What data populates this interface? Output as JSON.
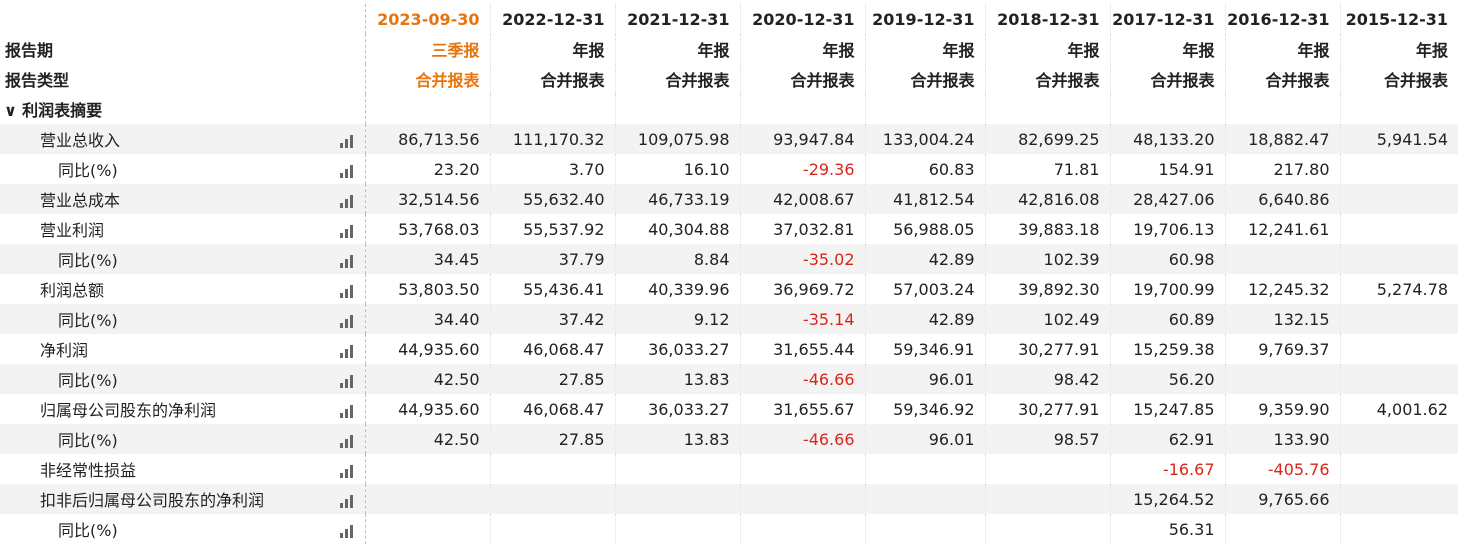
{
  "header": {
    "period_label": "报告期",
    "type_label": "报告类型"
  },
  "columns": [
    {
      "date": "2023-09-30",
      "period_type": "三季报",
      "report_type": "合并报表"
    },
    {
      "date": "2022-12-31",
      "period_type": "年报",
      "report_type": "合并报表"
    },
    {
      "date": "2021-12-31",
      "period_type": "年报",
      "report_type": "合并报表"
    },
    {
      "date": "2020-12-31",
      "period_type": "年报",
      "report_type": "合并报表"
    },
    {
      "date": "2019-12-31",
      "period_type": "年报",
      "report_type": "合并报表"
    },
    {
      "date": "2018-12-31",
      "period_type": "年报",
      "report_type": "合并报表"
    },
    {
      "date": "2017-12-31",
      "period_type": "年报",
      "report_type": "合并报表"
    },
    {
      "date": "2016-12-31",
      "period_type": "年报",
      "report_type": "合并报表"
    },
    {
      "date": "2015-12-31",
      "period_type": "年报",
      "report_type": "合并报表"
    }
  ],
  "section": {
    "title": "利润表摘要"
  },
  "rows": [
    {
      "label": "营业总收入",
      "values": [
        "86,713.56",
        "111,170.32",
        "109,075.98",
        "93,947.84",
        "133,004.24",
        "82,699.25",
        "48,133.20",
        "18,882.47",
        "5,941.54"
      ],
      "yoy": {
        "label": "同比(%)",
        "values": [
          "23.20",
          "3.70",
          "16.10",
          "-29.36",
          "60.83",
          "71.81",
          "154.91",
          "217.80",
          null
        ]
      }
    },
    {
      "label": "营业总成本",
      "values": [
        "32,514.56",
        "55,632.40",
        "46,733.19",
        "42,008.67",
        "41,812.54",
        "42,816.08",
        "28,427.06",
        "6,640.86",
        null
      ]
    },
    {
      "label": "营业利润",
      "values": [
        "53,768.03",
        "55,537.92",
        "40,304.88",
        "37,032.81",
        "56,988.05",
        "39,883.18",
        "19,706.13",
        "12,241.61",
        null
      ],
      "yoy": {
        "label": "同比(%)",
        "values": [
          "34.45",
          "37.79",
          "8.84",
          "-35.02",
          "42.89",
          "102.39",
          "60.98",
          null,
          null
        ]
      }
    },
    {
      "label": "利润总额",
      "values": [
        "53,803.50",
        "55,436.41",
        "40,339.96",
        "36,969.72",
        "57,003.24",
        "39,892.30",
        "19,700.99",
        "12,245.32",
        "5,274.78"
      ],
      "yoy": {
        "label": "同比(%)",
        "values": [
          "34.40",
          "37.42",
          "9.12",
          "-35.14",
          "42.89",
          "102.49",
          "60.89",
          "132.15",
          null
        ]
      }
    },
    {
      "label": "净利润",
      "values": [
        "44,935.60",
        "46,068.47",
        "36,033.27",
        "31,655.44",
        "59,346.91",
        "30,277.91",
        "15,259.38",
        "9,769.37",
        null
      ],
      "yoy": {
        "label": "同比(%)",
        "values": [
          "42.50",
          "27.85",
          "13.83",
          "-46.66",
          "96.01",
          "98.42",
          "56.20",
          null,
          null
        ]
      }
    },
    {
      "label": "归属母公司股东的净利润",
      "values": [
        "44,935.60",
        "46,068.47",
        "36,033.27",
        "31,655.67",
        "59,346.92",
        "30,277.91",
        "15,247.85",
        "9,359.90",
        "4,001.62"
      ],
      "yoy": {
        "label": "同比(%)",
        "values": [
          "42.50",
          "27.85",
          "13.83",
          "-46.66",
          "96.01",
          "98.57",
          "62.91",
          "133.90",
          null
        ]
      }
    },
    {
      "label": "非经常性损益",
      "values": [
        null,
        null,
        null,
        null,
        null,
        null,
        "-16.67",
        "-405.76",
        null
      ]
    },
    {
      "label": "扣非后归属母公司股东的净利润",
      "values": [
        null,
        null,
        null,
        null,
        null,
        null,
        "15,264.52",
        "9,765.66",
        null
      ],
      "yoy": {
        "label": "同比(%)",
        "values": [
          null,
          null,
          null,
          null,
          null,
          null,
          "56.31",
          null,
          null
        ]
      }
    }
  ]
}
